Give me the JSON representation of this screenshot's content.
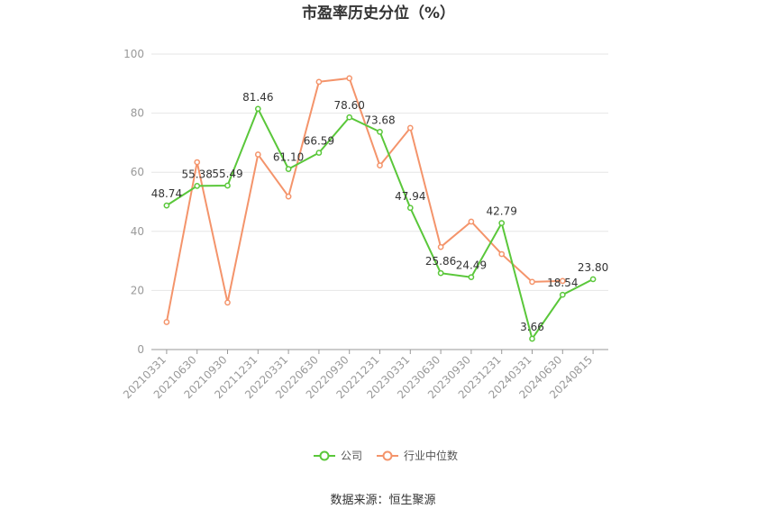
{
  "chart_data": {
    "type": "line",
    "title": "市盈率历史分位（%）",
    "categories": [
      "20210331",
      "20210630",
      "20210930",
      "20211231",
      "20220331",
      "20220630",
      "20220930",
      "20221231",
      "20230331",
      "20230630",
      "20230930",
      "20231231",
      "20240331",
      "20240630",
      "20240815"
    ],
    "series": [
      {
        "name": "公司",
        "color": "#5ac73a",
        "values": [
          48.74,
          55.38,
          55.49,
          81.46,
          61.1,
          66.59,
          78.6,
          73.68,
          47.94,
          25.86,
          24.49,
          42.79,
          3.66,
          18.54,
          23.8
        ],
        "labels": [
          "48.74",
          "55.38",
          "55.49",
          "81.46",
          "61.10",
          "66.59",
          "78.60",
          "73.68",
          "47.94",
          "25.86",
          "24.49",
          "42.79",
          "3.66",
          "18.54",
          "23.80"
        ]
      },
      {
        "name": "行业中位数",
        "color": "#f4946b",
        "values": [
          9.3,
          63.4,
          15.9,
          66.0,
          51.8,
          90.6,
          91.8,
          62.3,
          75.0,
          34.7,
          43.3,
          32.3,
          22.9,
          23.2,
          null
        ]
      }
    ],
    "ylim": [
      0,
      100
    ],
    "yticks": [
      0,
      20,
      40,
      60,
      80,
      100
    ],
    "grid": true,
    "legend": "bottom-center"
  },
  "source": "数据来源：恒生聚源"
}
